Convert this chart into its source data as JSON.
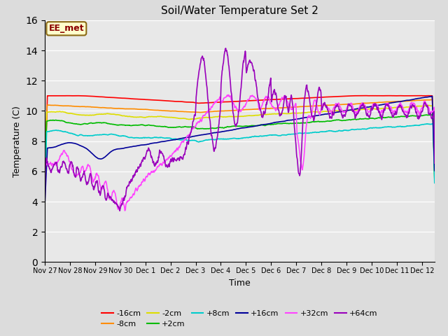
{
  "title": "Soil/Water Temperature Set 2",
  "xlabel": "Time",
  "ylabel": "Temperature (C)",
  "ylim": [
    0,
    16
  ],
  "yticks": [
    0,
    2,
    4,
    6,
    8,
    10,
    12,
    14,
    16
  ],
  "annotation": "EE_met",
  "annotation_color": "#8B0000",
  "annotation_bg": "#FFFFCC",
  "bg_color": "#DCDCDC",
  "plot_bg": "#E8E8E8",
  "series": {
    "-16cm": {
      "color": "#FF0000"
    },
    "-8cm": {
      "color": "#FF8C00"
    },
    "-2cm": {
      "color": "#DDDD00"
    },
    "+2cm": {
      "color": "#00BB00"
    },
    "+8cm": {
      "color": "#00CCCC"
    },
    "+16cm": {
      "color": "#000099"
    },
    "+32cm": {
      "color": "#FF44FF"
    },
    "+64cm": {
      "color": "#9900BB"
    }
  },
  "xtick_labels": [
    "Nov 27",
    "Nov 28",
    "Nov 29",
    "Nov 30",
    "Dec 1",
    "Dec 2",
    "Dec 3",
    "Dec 4",
    "Dec 5",
    "Dec 6",
    "Dec 7",
    "Dec 8",
    "Dec 9",
    "Dec 10",
    "Dec 11",
    "Dec 12"
  ],
  "xtick_positions": [
    0,
    1,
    2,
    3,
    4,
    5,
    6,
    7,
    8,
    9,
    10,
    11,
    12,
    13,
    14,
    15
  ]
}
